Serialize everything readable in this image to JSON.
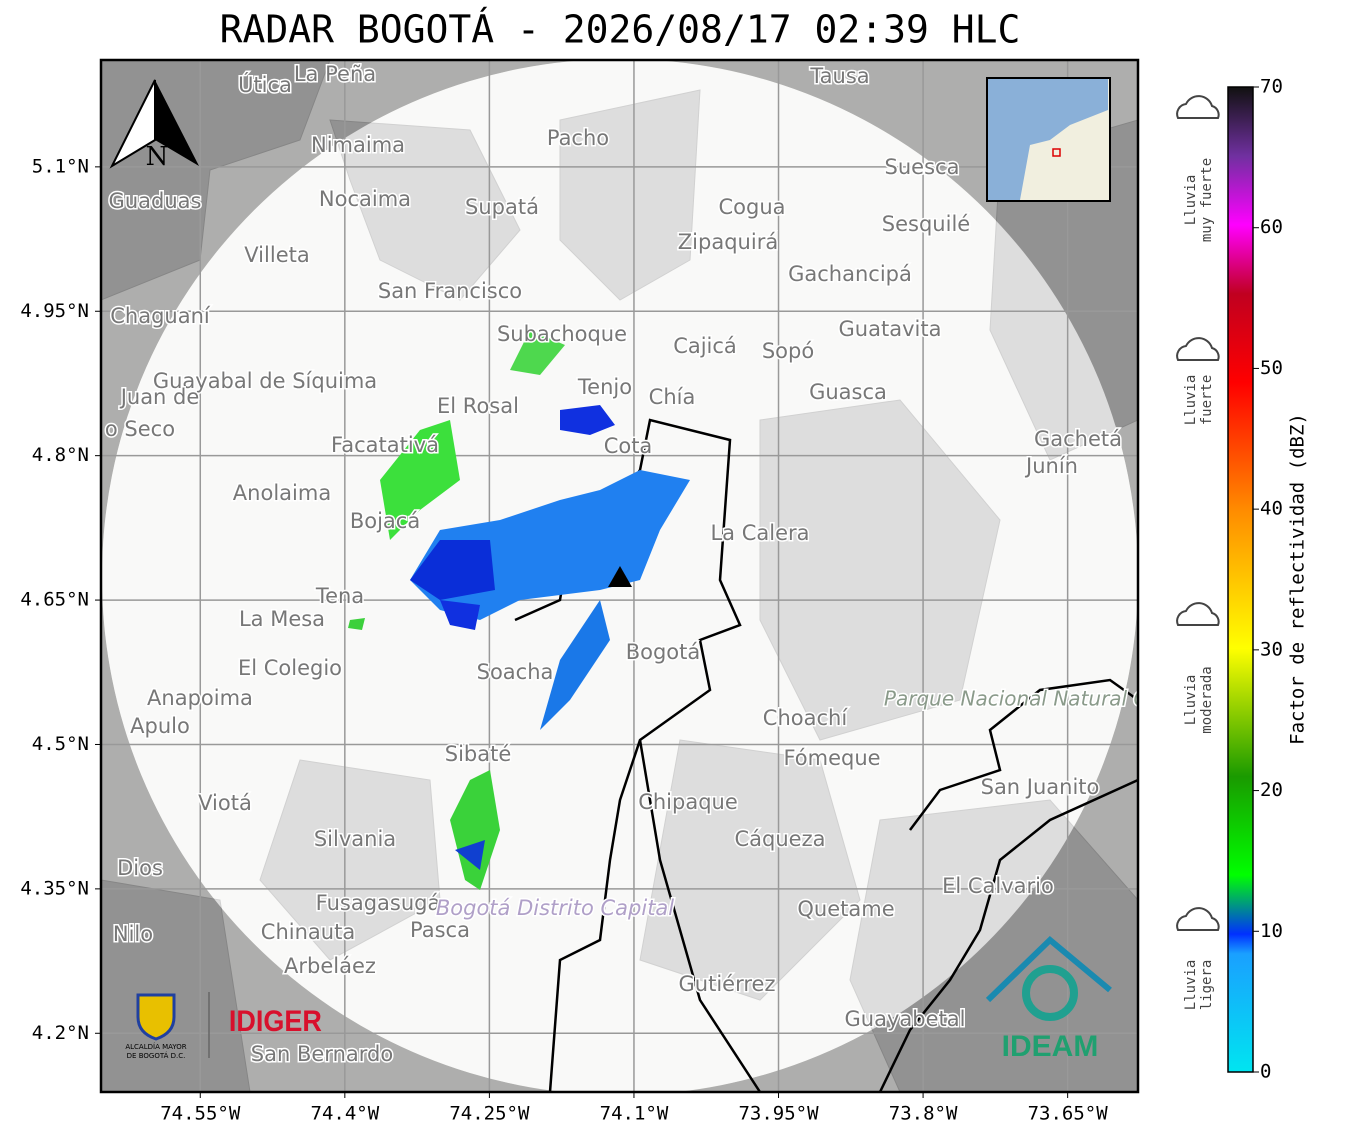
{
  "title": "RADAR BOGOTÁ - 2026/08/17 02:39 HLC",
  "map": {
    "latlim": [
      4.139,
      5.211
    ],
    "lonlim": [
      -74.653,
      -73.577
    ],
    "lat_ticks": [
      {
        "value": 5.1,
        "label": "5.1°N"
      },
      {
        "value": 4.95,
        "label": "4.95°N"
      },
      {
        "value": 4.8,
        "label": "4.8°N"
      },
      {
        "value": 4.65,
        "label": "4.65°N"
      },
      {
        "value": 4.5,
        "label": "4.5°N"
      },
      {
        "value": 4.35,
        "label": "4.35°N"
      },
      {
        "value": 4.2,
        "label": "4.2°N"
      }
    ],
    "lon_ticks": [
      {
        "value": -74.55,
        "label": "74.55°W"
      },
      {
        "value": -74.4,
        "label": "74.4°W"
      },
      {
        "value": -74.25,
        "label": "74.25°W"
      },
      {
        "value": -74.1,
        "label": "74.1°W"
      },
      {
        "value": -73.95,
        "label": "73.95°W"
      },
      {
        "value": -73.8,
        "label": "73.8°W"
      },
      {
        "value": -73.65,
        "label": "73.65°W"
      }
    ],
    "north": "N",
    "places": [
      "La Peña",
      "Útica",
      "Tausa",
      "Pacho",
      "Nimaima",
      "Suesca",
      "Guaduas",
      "Nocaima",
      "Supatá",
      "Cogua",
      "Sesquilé",
      "Zipaquirá",
      "Villeta",
      "Gachancipá",
      "San Francisco",
      "Chaguaní",
      "Subachoque",
      "Cajicá",
      "Sopó",
      "Guatavita",
      "Guayabal de Síquima",
      "Tenjo",
      "Chía",
      "Guasca",
      "El Rosal",
      "Juan de",
      "o Seco",
      "Facatativá",
      "Cota",
      "Gachetá",
      "Junín",
      "Anolaima",
      "Bojacá",
      "La Calera",
      "Tena",
      "La Mesa",
      "Bogotá",
      "Parque Nacional Natural Chingaza",
      "El Colegio",
      "Soacha",
      "Anapoima",
      "Apulo",
      "Choachí",
      "Sibaté",
      "Fómeque",
      "San Juanito",
      "Viotá",
      "Chipaque",
      "Silvania",
      "Cáqueza",
      "Dios",
      "El Calvario",
      "Fusagasugá",
      "Bogotá Distrito Capital",
      "Quetame",
      "Nilo",
      "Chinauta",
      "Pasca",
      "Arbeláez",
      "Gutiérrez",
      "Guayabetal",
      "San Bernardo"
    ]
  },
  "colorbar": {
    "label": "Factor de reflectividad (dBZ)",
    "lim": [
      0,
      70
    ],
    "ticks": [
      0,
      10,
      20,
      30,
      40,
      50,
      60,
      70
    ]
  },
  "rain_legend": [
    [
      "Lluvia",
      "muy fuerte"
    ],
    [
      "Lluvia",
      "fuerte"
    ],
    [
      "Lluvia",
      "moderada"
    ],
    [
      "Lluvia",
      "ligera"
    ]
  ],
  "logos": {
    "alcaldia": [
      "ALCALDÍA MAYOR",
      "DE BOGOTÁ D.C."
    ],
    "idiger": "IDIGER",
    "ideam": "IDEAM"
  }
}
